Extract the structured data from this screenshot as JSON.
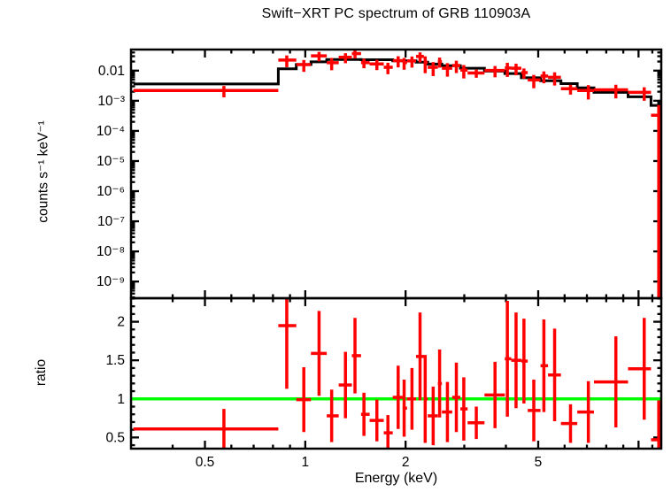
{
  "title": "Swift−XRT PC spectrum of GRB 110903A",
  "colors": {
    "data": "#ff0000",
    "model": "#000000",
    "reference_line": "#00ff00",
    "axis": "#000000",
    "background": "#ffffff"
  },
  "chart_data": [
    {
      "id": "spectrum",
      "type": "scatter",
      "title": "Swift−XRT PC spectrum of GRB 110903A",
      "ylabel": "counts s⁻¹ keV⁻¹",
      "xscale": "log",
      "yscale": "log",
      "xlim": [
        0.3,
        11.7
      ],
      "ylim": [
        2.8e-10,
        0.05
      ],
      "grid": false,
      "legend": "none",
      "yticks": [
        {
          "v": 0.01,
          "label": "0.01"
        },
        {
          "v": 0.001,
          "label": "10⁻³"
        },
        {
          "v": 0.0001,
          "label": "10⁻⁴"
        },
        {
          "v": 1e-05,
          "label": "10⁻⁵"
        },
        {
          "v": 1e-06,
          "label": "10⁻⁶"
        },
        {
          "v": 1e-07,
          "label": "10⁻⁷"
        },
        {
          "v": 1e-08,
          "label": "10⁻⁸"
        },
        {
          "v": 1e-09,
          "label": "10⁻⁹"
        }
      ],
      "model_steps": {
        "columns": [
          "elo_keV",
          "ehi_keV",
          "value_counts_s_keV"
        ],
        "rows": [
          [
            0.305,
            0.83,
            0.0036
          ],
          [
            0.83,
            0.94,
            0.0115
          ],
          [
            0.94,
            1.04,
            0.016
          ],
          [
            1.04,
            1.16,
            0.0195
          ],
          [
            1.16,
            1.47,
            0.0235
          ],
          [
            1.47,
            1.83,
            0.023
          ],
          [
            1.83,
            2.15,
            0.021
          ],
          [
            2.15,
            2.33,
            0.019
          ],
          [
            2.33,
            2.57,
            0.0165
          ],
          [
            2.57,
            2.92,
            0.0145
          ],
          [
            2.92,
            3.45,
            0.012
          ],
          [
            3.45,
            3.97,
            0.0096
          ],
          [
            3.97,
            4.45,
            0.008
          ],
          [
            4.45,
            5.08,
            0.0058
          ],
          [
            5.08,
            5.85,
            0.0046
          ],
          [
            5.85,
            6.55,
            0.0037
          ],
          [
            6.55,
            7.35,
            0.0027
          ],
          [
            7.35,
            9.3,
            0.0019
          ],
          [
            9.3,
            10.9,
            0.00135
          ],
          [
            10.9,
            11.7,
            0.0007
          ]
        ]
      },
      "points": {
        "columns": [
          "e_keV",
          "elo_keV",
          "ehi_keV",
          "value_counts_s_keV",
          "err"
        ],
        "rows": [
          [
            0.57,
            0.305,
            0.83,
            0.0022,
            0.0009
          ],
          [
            0.88,
            0.83,
            0.94,
            0.0224,
            0.0094
          ],
          [
            0.99,
            0.94,
            1.04,
            0.0158,
            0.0067
          ],
          [
            1.1,
            1.04,
            1.16,
            0.031,
            0.0107
          ],
          [
            1.2,
            1.16,
            1.26,
            0.0183,
            0.008
          ],
          [
            1.32,
            1.26,
            1.38,
            0.0277,
            0.0101
          ],
          [
            1.41,
            1.38,
            1.47,
            0.0367,
            0.0115
          ],
          [
            1.5,
            1.47,
            1.56,
            0.0184,
            0.0064
          ],
          [
            1.64,
            1.56,
            1.72,
            0.0166,
            0.0062
          ],
          [
            1.77,
            1.72,
            1.83,
            0.0129,
            0.0053
          ],
          [
            1.9,
            1.83,
            1.96,
            0.0214,
            0.0086
          ],
          [
            1.98,
            1.96,
            2.02,
            0.0185,
            0.0078
          ],
          [
            2.09,
            2.02,
            2.15,
            0.021,
            0.0084
          ],
          [
            2.21,
            2.15,
            2.27,
            0.0295,
            0.0108
          ],
          [
            2.29,
            2.27,
            2.33,
            0.019,
            0.0108
          ],
          [
            2.42,
            2.33,
            2.5,
            0.0129,
            0.0063
          ],
          [
            2.53,
            2.5,
            2.57,
            0.0198,
            0.0073
          ],
          [
            2.67,
            2.57,
            2.76,
            0.012,
            0.0057
          ],
          [
            2.84,
            2.76,
            2.92,
            0.0148,
            0.0065
          ],
          [
            2.99,
            2.92,
            3.07,
            0.0104,
            0.0049
          ],
          [
            3.26,
            3.07,
            3.45,
            0.0083,
            0.0025
          ],
          [
            3.71,
            3.45,
            3.97,
            0.0101,
            0.0041
          ],
          [
            4.04,
            3.97,
            4.15,
            0.0122,
            0.006
          ],
          [
            4.29,
            4.15,
            4.45,
            0.012,
            0.005
          ],
          [
            4.53,
            4.45,
            4.65,
            0.0086,
            0.0032
          ],
          [
            4.85,
            4.65,
            5.08,
            0.0049,
            0.0023
          ],
          [
            5.2,
            5.08,
            5.35,
            0.0066,
            0.0028
          ],
          [
            5.6,
            5.35,
            5.85,
            0.006,
            0.0028
          ],
          [
            6.25,
            5.85,
            6.55,
            0.0025,
            0.0009
          ],
          [
            7.07,
            6.55,
            7.35,
            0.0022,
            0.0011
          ],
          [
            8.55,
            7.35,
            9.3,
            0.0023,
            0.0011
          ],
          [
            10.4,
            9.3,
            10.9,
            0.0019,
            0.0009
          ],
          [
            11.5,
            10.9,
            11.7,
            0.00033,
            0.00039
          ]
        ]
      }
    },
    {
      "id": "ratio",
      "type": "scatter",
      "ylabel": "ratio",
      "xlabel": "Energy (keV)",
      "xscale": "log",
      "yscale": "linear",
      "xlim": [
        0.3,
        11.7
      ],
      "ylim": [
        0.355,
        2.305
      ],
      "grid": false,
      "legend": "none",
      "reference_line_y": 1,
      "yticks": [
        {
          "v": 0.5,
          "label": "0.5"
        },
        {
          "v": 1,
          "label": "1"
        },
        {
          "v": 1.5,
          "label": "1.5"
        },
        {
          "v": 2,
          "label": "2"
        }
      ],
      "xticks": [
        {
          "v": 0.5,
          "label": "0.5"
        },
        {
          "v": 1,
          "label": "1"
        },
        {
          "v": 2,
          "label": "2"
        },
        {
          "v": 5,
          "label": "5"
        }
      ],
      "points": {
        "columns": [
          "e_keV",
          "elo_keV",
          "ehi_keV",
          "ratio",
          "err"
        ],
        "rows": [
          [
            0.57,
            0.305,
            0.83,
            0.61,
            0.26
          ],
          [
            0.88,
            0.83,
            0.94,
            1.95,
            0.82
          ],
          [
            0.99,
            0.94,
            1.04,
            0.99,
            0.42
          ],
          [
            1.1,
            1.04,
            1.16,
            1.59,
            0.55
          ],
          [
            1.2,
            1.16,
            1.26,
            0.78,
            0.34
          ],
          [
            1.32,
            1.26,
            1.38,
            1.18,
            0.43
          ],
          [
            1.41,
            1.38,
            1.47,
            1.56,
            0.49
          ],
          [
            1.5,
            1.47,
            1.56,
            0.8,
            0.28
          ],
          [
            1.64,
            1.56,
            1.72,
            0.72,
            0.27
          ],
          [
            1.77,
            1.72,
            1.83,
            0.56,
            0.23
          ],
          [
            1.9,
            1.83,
            1.96,
            1.02,
            0.41
          ],
          [
            1.98,
            1.96,
            2.02,
            0.88,
            0.37
          ],
          [
            2.09,
            2.02,
            2.15,
            1.0,
            0.4
          ],
          [
            2.21,
            2.15,
            2.27,
            1.55,
            0.57
          ],
          [
            2.29,
            2.27,
            2.33,
            1.0,
            0.57
          ],
          [
            2.42,
            2.33,
            2.5,
            0.78,
            0.38
          ],
          [
            2.53,
            2.5,
            2.57,
            1.2,
            0.44
          ],
          [
            2.67,
            2.57,
            2.76,
            0.83,
            0.39
          ],
          [
            2.84,
            2.76,
            2.92,
            1.02,
            0.45
          ],
          [
            2.99,
            2.92,
            3.07,
            0.87,
            0.41
          ],
          [
            3.26,
            3.07,
            3.45,
            0.69,
            0.21
          ],
          [
            3.71,
            3.45,
            3.97,
            1.05,
            0.43
          ],
          [
            4.04,
            3.97,
            4.15,
            1.52,
            0.75
          ],
          [
            4.29,
            4.15,
            4.45,
            1.5,
            0.62
          ],
          [
            4.53,
            4.45,
            4.65,
            1.49,
            0.55
          ],
          [
            4.85,
            4.65,
            5.08,
            0.85,
            0.4
          ],
          [
            5.2,
            5.08,
            5.35,
            1.43,
            0.6
          ],
          [
            5.6,
            5.35,
            5.85,
            1.31,
            0.6
          ],
          [
            6.25,
            5.85,
            6.55,
            0.68,
            0.25
          ],
          [
            7.07,
            6.55,
            7.35,
            0.83,
            0.4
          ],
          [
            8.55,
            7.35,
            9.3,
            1.22,
            0.59
          ],
          [
            10.4,
            9.3,
            10.9,
            1.39,
            0.66
          ],
          [
            11.5,
            10.9,
            11.7,
            0.47,
            0.51
          ]
        ]
      }
    }
  ]
}
